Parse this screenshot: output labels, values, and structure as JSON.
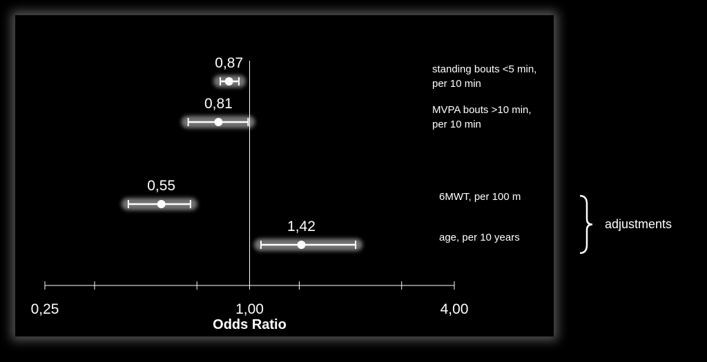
{
  "chart_data": {
    "type": "scatter",
    "subtype": "forest-plot",
    "xlabel": "Odds Ratio",
    "x_scale": "log2",
    "xlim": [
      0.25,
      4.0
    ],
    "x_ticks": [
      {
        "value": 0.25,
        "label": "0,25"
      },
      {
        "value": 1.0,
        "label": "1,00"
      },
      {
        "value": 4.0,
        "label": "4,00"
      }
    ],
    "x_minor_ticks": [
      0.35,
      0.7,
      1.4,
      2.8
    ],
    "reference_line": 1.0,
    "grid": false,
    "rows": [
      {
        "label_lines": [
          "standing bouts <5 min,",
          "per 10 min"
        ],
        "or": 0.87,
        "or_label": "0,87",
        "ci_low": 0.82,
        "ci_high": 0.93
      },
      {
        "label_lines": [
          "MVPA bouts >10 min,",
          "per 10 min"
        ],
        "or": 0.81,
        "or_label": "0,81",
        "ci_low": 0.66,
        "ci_high": 0.99
      },
      {
        "label_lines": [
          "6MWT, per 100 m"
        ],
        "or": 0.55,
        "or_label": "0,55",
        "ci_low": 0.44,
        "ci_high": 0.67
      },
      {
        "label_lines": [
          "age, per 10 years"
        ],
        "or": 1.42,
        "or_label": "1,42",
        "ci_low": 1.08,
        "ci_high": 2.05
      }
    ],
    "bracket": {
      "label": "adjustments",
      "rows": [
        2,
        3
      ]
    }
  }
}
